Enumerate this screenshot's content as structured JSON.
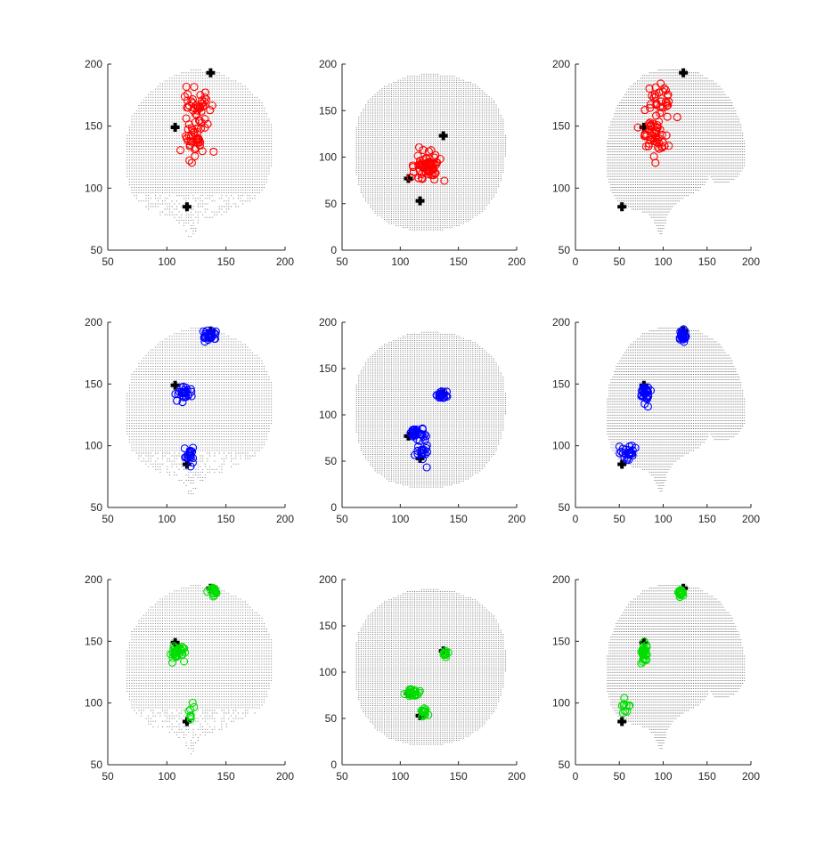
{
  "figure": {
    "background": "#ffffff"
  },
  "chart_data": [
    {
      "type": "scatter",
      "view": "coronal",
      "marker_color": "#ff0000",
      "marker_fill": "none",
      "xlim": [
        50,
        200
      ],
      "ylim": [
        50,
        200
      ],
      "xticks": [
        50,
        100,
        150,
        200
      ],
      "yticks": [
        50,
        100,
        150,
        200
      ],
      "sensors": [
        [
          137,
          193
        ],
        [
          107,
          149
        ],
        [
          117,
          85
        ]
      ],
      "clusters": [
        {
          "cx": 125,
          "cy": 165,
          "sx": 5,
          "sy": 9,
          "n": 40
        },
        {
          "cx": 124,
          "cy": 140,
          "sx": 5,
          "sy": 7,
          "n": 40
        }
      ]
    },
    {
      "type": "scatter",
      "view": "axial",
      "marker_color": "#ff0000",
      "marker_fill": "none",
      "xlim": [
        50,
        200
      ],
      "ylim": [
        0,
        200
      ],
      "xticks": [
        50,
        100,
        150,
        200
      ],
      "yticks": [
        0,
        50,
        100,
        150,
        200
      ],
      "sensors": [
        [
          137,
          123
        ],
        [
          107,
          77
        ],
        [
          117,
          53
        ]
      ],
      "clusters": [
        {
          "cx": 123,
          "cy": 90,
          "sx": 6,
          "sy": 7,
          "n": 70
        }
      ]
    },
    {
      "type": "scatter",
      "view": "sagittal",
      "marker_color": "#ff0000",
      "marker_fill": "none",
      "xlim": [
        0,
        200
      ],
      "ylim": [
        50,
        200
      ],
      "xticks": [
        0,
        50,
        100,
        150,
        200
      ],
      "yticks": [
        50,
        100,
        150,
        200
      ],
      "sensors": [
        [
          123,
          193
        ],
        [
          78,
          149
        ],
        [
          53,
          85
        ]
      ],
      "clusters": [
        {
          "cx": 95,
          "cy": 165,
          "sx": 8,
          "sy": 9,
          "n": 40
        },
        {
          "cx": 90,
          "cy": 140,
          "sx": 7,
          "sy": 7,
          "n": 40
        }
      ]
    },
    {
      "type": "scatter",
      "view": "coronal",
      "marker_color": "#0000ff",
      "marker_fill": "none",
      "xlim": [
        50,
        200
      ],
      "ylim": [
        50,
        200
      ],
      "xticks": [
        50,
        100,
        150,
        200
      ],
      "yticks": [
        50,
        100,
        150,
        200
      ],
      "sensors": [
        [
          137,
          193
        ],
        [
          107,
          149
        ],
        [
          117,
          85
        ]
      ],
      "clusters": [
        {
          "cx": 136,
          "cy": 189,
          "sx": 3,
          "sy": 2,
          "n": 30
        },
        {
          "cx": 115,
          "cy": 142,
          "sx": 3,
          "sy": 3,
          "n": 30
        },
        {
          "cx": 119,
          "cy": 93,
          "sx": 2,
          "sy": 4,
          "n": 20
        }
      ]
    },
    {
      "type": "scatter",
      "view": "axial",
      "marker_color": "#0000ff",
      "marker_fill": "none",
      "xlim": [
        50,
        200
      ],
      "ylim": [
        0,
        200
      ],
      "xticks": [
        50,
        100,
        150,
        200
      ],
      "yticks": [
        0,
        50,
        100,
        150,
        200
      ],
      "sensors": [
        [
          137,
          123
        ],
        [
          107,
          77
        ],
        [
          117,
          53
        ]
      ],
      "clusters": [
        {
          "cx": 137,
          "cy": 122,
          "sx": 3,
          "sy": 2,
          "n": 20
        },
        {
          "cx": 115,
          "cy": 81,
          "sx": 4,
          "sy": 3,
          "n": 30
        },
        {
          "cx": 119,
          "cy": 60,
          "sx": 3,
          "sy": 6,
          "n": 20
        }
      ]
    },
    {
      "type": "scatter",
      "view": "sagittal",
      "marker_color": "#0000ff",
      "marker_fill": "none",
      "xlim": [
        0,
        200
      ],
      "ylim": [
        50,
        200
      ],
      "xticks": [
        0,
        50,
        100,
        150,
        200
      ],
      "yticks": [
        50,
        100,
        150,
        200
      ],
      "sensors": [
        [
          123,
          193
        ],
        [
          78,
          149
        ],
        [
          53,
          85
        ]
      ],
      "clusters": [
        {
          "cx": 122,
          "cy": 189,
          "sx": 2,
          "sy": 2,
          "n": 25
        },
        {
          "cx": 80,
          "cy": 143,
          "sx": 3,
          "sy": 4,
          "n": 30
        },
        {
          "cx": 60,
          "cy": 94,
          "sx": 5,
          "sy": 3,
          "n": 25
        }
      ]
    },
    {
      "type": "scatter",
      "view": "coronal",
      "marker_color": "#00dd00",
      "marker_fill": "none",
      "xlim": [
        50,
        200
      ],
      "ylim": [
        50,
        200
      ],
      "xticks": [
        50,
        100,
        150,
        200
      ],
      "yticks": [
        50,
        100,
        150,
        200
      ],
      "sensors": [
        [
          137,
          193
        ],
        [
          107,
          149
        ],
        [
          117,
          85
        ]
      ],
      "clusters": [
        {
          "cx": 140,
          "cy": 190,
          "sx": 1.5,
          "sy": 2,
          "n": 20
        },
        {
          "cx": 109,
          "cy": 140,
          "sx": 3,
          "sy": 3,
          "n": 30
        },
        {
          "cx": 120,
          "cy": 95,
          "sx": 1.5,
          "sy": 4,
          "n": 8
        }
      ]
    },
    {
      "type": "scatter",
      "view": "axial",
      "marker_color": "#00dd00",
      "marker_fill": "none",
      "xlim": [
        50,
        200
      ],
      "ylim": [
        0,
        200
      ],
      "xticks": [
        50,
        100,
        150,
        200
      ],
      "yticks": [
        0,
        50,
        100,
        150,
        200
      ],
      "sensors": [
        [
          137,
          123
        ],
        [
          107,
          77
        ],
        [
          117,
          53
        ]
      ],
      "clusters": [
        {
          "cx": 140,
          "cy": 120,
          "sx": 1.5,
          "sy": 1.5,
          "n": 10
        },
        {
          "cx": 111,
          "cy": 78,
          "sx": 3,
          "sy": 2,
          "n": 25
        },
        {
          "cx": 120,
          "cy": 56,
          "sx": 2,
          "sy": 3,
          "n": 15
        }
      ]
    },
    {
      "type": "scatter",
      "view": "sagittal",
      "marker_color": "#00dd00",
      "marker_fill": "none",
      "xlim": [
        0,
        200
      ],
      "ylim": [
        50,
        200
      ],
      "xticks": [
        0,
        50,
        100,
        150,
        200
      ],
      "yticks": [
        50,
        100,
        150,
        200
      ],
      "sensors": [
        [
          123,
          193
        ],
        [
          78,
          149
        ],
        [
          53,
          85
        ]
      ],
      "clusters": [
        {
          "cx": 120,
          "cy": 189,
          "sx": 1.5,
          "sy": 2,
          "n": 20
        },
        {
          "cx": 78,
          "cy": 140,
          "sx": 2,
          "sy": 5,
          "n": 30
        },
        {
          "cx": 56,
          "cy": 96,
          "sx": 3,
          "sy": 4,
          "n": 10
        }
      ]
    }
  ]
}
